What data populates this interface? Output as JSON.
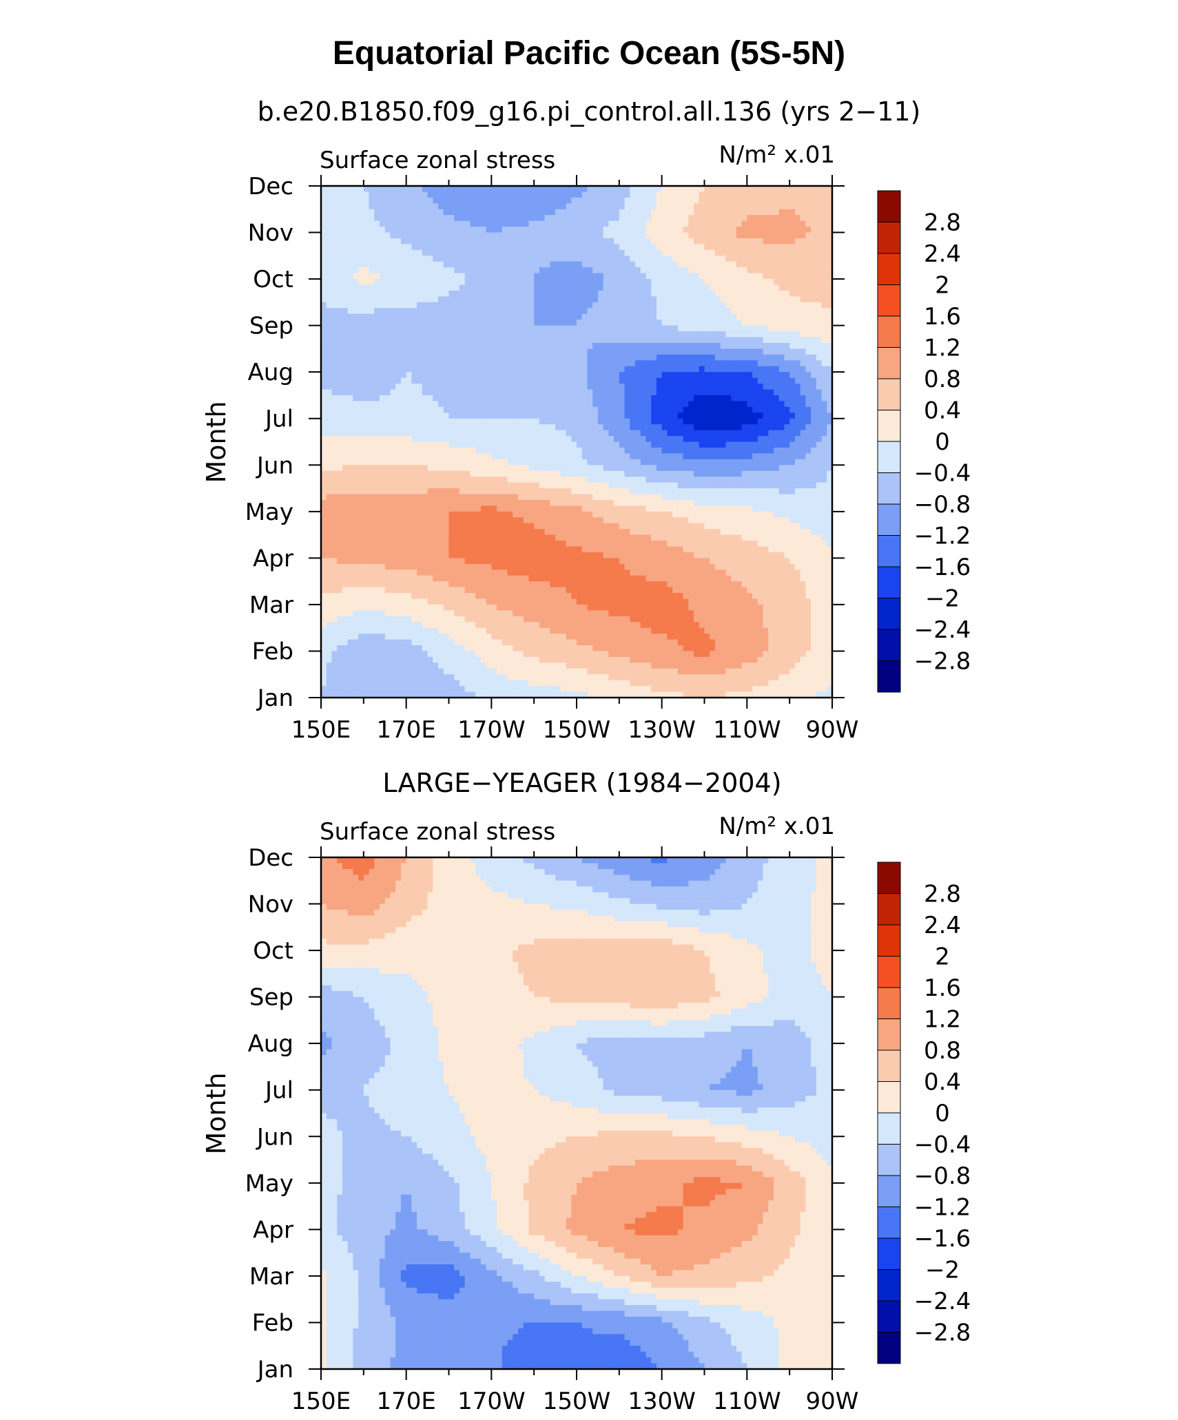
{
  "title": "Equatorial Pacific Ocean (5S-5N)",
  "colors": {
    "contour_fills": [
      "#000080",
      "#0010a8",
      "#0025cc",
      "#1a44f0",
      "#4876f5",
      "#7a9ff5",
      "#aac3f8",
      "#d5e7fb",
      "#fde9d8",
      "#fbcbb0",
      "#f8a682",
      "#f57a4c",
      "#f45022",
      "#e03408",
      "#c02405",
      "#8b0a00"
    ],
    "axis": "#000000",
    "background": "#ffffff"
  },
  "chart_data": [
    {
      "type": "heatmap",
      "subtitle": "b.e20.B1850.f09_g16.pi_control.all.136 (yrs 2−11)",
      "left_label": "Surface zonal stress",
      "units": "N/m² x.01",
      "ylabel": "Month",
      "x_ticks": [
        "150E",
        "170E",
        "170W",
        "150W",
        "130W",
        "110W",
        "90W"
      ],
      "y_ticks": [
        "Jan",
        "Feb",
        "Mar",
        "Apr",
        "May",
        "Jun",
        "Jul",
        "Aug",
        "Sep",
        "Oct",
        "Nov",
        "Dec"
      ],
      "x_longitudes": [
        150,
        170,
        190,
        210,
        230,
        250,
        270
      ],
      "colorbar_levels": [
        -2.8,
        -2.4,
        -2,
        -1.6,
        -1.2,
        -0.8,
        -0.4,
        0,
        0.4,
        0.8,
        1.2,
        1.6,
        2,
        2.4,
        2.8
      ],
      "colorbar_labels": [
        "2.8",
        "2.4",
        "2",
        "1.6",
        "1.2",
        "0.8",
        "0.4",
        "0",
        "−0.4",
        "−0.8",
        "−1.2",
        "−1.6",
        "−2",
        "−2.4",
        "−2.8"
      ],
      "grid_lon": [
        150,
        160,
        170,
        180,
        190,
        200,
        210,
        220,
        230,
        240,
        250,
        260,
        270
      ],
      "values": [
        [
          -0.4,
          -0.8,
          -0.8,
          -0.6,
          -0.3,
          -0.2,
          -0.1,
          0.1,
          0.3,
          0.4,
          0.3,
          0.1,
          -0.1
        ],
        [
          -0.3,
          -0.7,
          -0.6,
          -0.2,
          0.2,
          0.5,
          0.7,
          0.9,
          1.1,
          1.3,
          1.0,
          0.6,
          0.2
        ],
        [
          0.3,
          0.1,
          0.2,
          0.5,
          0.8,
          1.0,
          1.2,
          1.3,
          1.4,
          1.1,
          0.9,
          0.6,
          0.2
        ],
        [
          0.8,
          0.9,
          1.0,
          1.2,
          1.3,
          1.4,
          1.3,
          1.2,
          1.0,
          0.8,
          0.6,
          0.4,
          0.1
        ],
        [
          1.0,
          1.1,
          1.1,
          1.2,
          1.3,
          1.1,
          0.9,
          0.6,
          0.4,
          0.2,
          0.1,
          -0.1,
          -0.3
        ],
        [
          0.3,
          0.4,
          0.4,
          0.3,
          0.1,
          -0.1,
          -0.3,
          -0.6,
          -0.9,
          -1.1,
          -1.0,
          -0.8,
          -0.4
        ],
        [
          -0.2,
          -0.3,
          -0.3,
          -0.4,
          -0.4,
          -0.4,
          -0.5,
          -1.1,
          -1.8,
          -2.4,
          -2.2,
          -1.7,
          -0.8
        ],
        [
          -0.5,
          -0.6,
          -0.4,
          -0.5,
          -0.6,
          -0.6,
          -0.7,
          -1.2,
          -1.6,
          -1.7,
          -1.6,
          -1.2,
          -0.4
        ],
        [
          -0.5,
          -0.6,
          -0.6,
          -0.6,
          -0.6,
          -0.8,
          -0.8,
          -0.6,
          -0.4,
          -0.2,
          0.0,
          0.2,
          0.3
        ],
        [
          -0.3,
          0.1,
          -0.1,
          -0.3,
          -0.5,
          -0.8,
          -1.0,
          -0.7,
          -0.3,
          0.0,
          0.3,
          0.5,
          0.6
        ],
        [
          -0.3,
          -0.3,
          -0.5,
          -0.7,
          -0.8,
          -0.7,
          -0.5,
          -0.3,
          0.2,
          0.6,
          0.9,
          0.9,
          0.7
        ],
        [
          -0.3,
          -0.4,
          -0.7,
          -1.0,
          -1.1,
          -1.2,
          -0.9,
          -0.6,
          0.0,
          0.4,
          0.6,
          0.7,
          0.6
        ]
      ]
    },
    {
      "type": "heatmap",
      "subtitle": "LARGE−YEAGER (1984−2004)",
      "left_label": "Surface zonal stress",
      "units": "N/m² x.01",
      "ylabel": "Month",
      "x_ticks": [
        "150E",
        "170E",
        "170W",
        "150W",
        "130W",
        "110W",
        "90W"
      ],
      "y_ticks": [
        "Jan",
        "Feb",
        "Mar",
        "Apr",
        "May",
        "Jun",
        "Jul",
        "Aug",
        "Sep",
        "Oct",
        "Nov",
        "Dec"
      ],
      "x_longitudes": [
        150,
        170,
        190,
        210,
        230,
        250,
        270
      ],
      "colorbar_levels": [
        -2.8,
        -2.4,
        -2,
        -1.6,
        -1.2,
        -0.8,
        -0.4,
        0,
        0.4,
        0.8,
        1.2,
        1.6,
        2,
        2.4,
        2.8
      ],
      "colorbar_labels": [
        "2.8",
        "2.4",
        "2",
        "1.6",
        "1.2",
        "0.8",
        "0.4",
        "0",
        "−0.4",
        "−0.8",
        "−1.2",
        "−1.6",
        "−2",
        "−2.4",
        "−2.8"
      ],
      "grid_lon": [
        150,
        160,
        170,
        180,
        190,
        200,
        210,
        220,
        230,
        240,
        250,
        260,
        270
      ],
      "values": [
        [
          0.1,
          -0.6,
          -0.9,
          -1.0,
          -1.1,
          -1.6,
          -1.3,
          -1.5,
          -1.2,
          -0.8,
          -0.4,
          0.1,
          0.2
        ],
        [
          0.1,
          -0.5,
          -0.9,
          -1.0,
          -1.1,
          -1.2,
          -1.2,
          -1.1,
          -0.9,
          -0.5,
          -0.2,
          0.1,
          0.2
        ],
        [
          0.1,
          -0.5,
          -1.3,
          -1.4,
          -0.9,
          -0.5,
          0.0,
          0.4,
          0.8,
          0.7,
          0.5,
          0.3,
          0.1
        ],
        [
          -0.3,
          -0.6,
          -0.9,
          -0.6,
          -0.1,
          0.5,
          0.9,
          1.2,
          1.3,
          1.1,
          0.9,
          0.5,
          0.1
        ],
        [
          -0.3,
          -0.5,
          -0.8,
          -0.5,
          0.0,
          0.5,
          0.8,
          1.0,
          1.1,
          1.3,
          1.2,
          0.6,
          0.1
        ],
        [
          -0.3,
          -0.5,
          -0.4,
          -0.1,
          0.1,
          0.3,
          0.4,
          0.5,
          0.5,
          0.4,
          0.2,
          0.0,
          -0.2
        ],
        [
          -0.5,
          -0.4,
          -0.2,
          0.0,
          0.1,
          0.0,
          -0.2,
          -0.5,
          -0.6,
          -0.8,
          -0.9,
          -0.6,
          -0.3
        ],
        [
          -0.9,
          -0.6,
          -0.3,
          0.1,
          0.2,
          -0.1,
          -0.4,
          -0.6,
          -0.5,
          -0.6,
          -0.8,
          -0.6,
          -0.2
        ],
        [
          -0.6,
          -0.4,
          -0.1,
          0.1,
          0.3,
          0.4,
          0.5,
          0.6,
          0.7,
          0.5,
          0.2,
          -0.2,
          0.0
        ],
        [
          0.3,
          0.3,
          0.1,
          0.1,
          0.3,
          0.5,
          0.6,
          0.6,
          0.7,
          0.4,
          0.1,
          -0.2,
          0.2
        ],
        [
          0.8,
          1.0,
          0.6,
          0.2,
          0.1,
          0.0,
          -0.1,
          -0.3,
          -0.5,
          -0.6,
          -0.4,
          -0.1,
          0.1
        ],
        [
          1.1,
          1.4,
          0.8,
          0.2,
          -0.2,
          -0.5,
          -0.8,
          -1.1,
          -1.3,
          -1.0,
          -0.6,
          -0.2,
          0.1
        ]
      ]
    }
  ]
}
